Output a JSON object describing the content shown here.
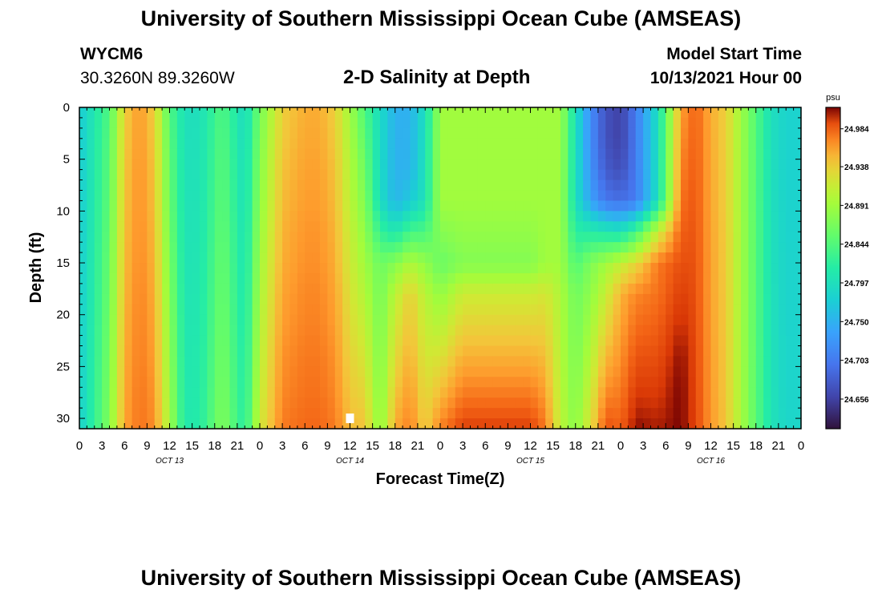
{
  "header": {
    "title": "University of Southern Mississippi Ocean Cube (AMSEAS)",
    "station": "WYCM6",
    "coords": "30.3260N  89.3260W",
    "chart_title": "2-D Salinity at Depth",
    "start_label": "Model Start Time",
    "start_value": "10/13/2021 Hour 00"
  },
  "footer": {
    "title": "University of Southern Mississippi Ocean Cube (AMSEAS)"
  },
  "chart_data": {
    "type": "heatmap",
    "title": "2-D Salinity at Depth",
    "xlabel": "Forecast Time(Z)",
    "ylabel": "Depth (ft)",
    "x_range_hours": [
      0,
      96
    ],
    "y_range": [
      0,
      31
    ],
    "x_tick_labels": [
      "0",
      "3",
      "6",
      "9",
      "12",
      "15",
      "18",
      "21",
      "0",
      "3",
      "6",
      "9",
      "12",
      "15",
      "18",
      "21",
      "0",
      "3",
      "6",
      "9",
      "12",
      "15",
      "18",
      "21",
      "0",
      "3",
      "6",
      "9",
      "12",
      "15",
      "18",
      "21",
      "0"
    ],
    "y_ticks": [
      0,
      5,
      10,
      15,
      20,
      25,
      30
    ],
    "day_labels": [
      "OCT 13",
      "OCT 14",
      "OCT 15",
      "OCT 16"
    ],
    "colorbar": {
      "unit": "psu",
      "range": [
        24.62,
        25.01
      ],
      "tick_values": [
        24.656,
        24.703,
        24.75,
        24.797,
        24.844,
        24.891,
        24.938,
        24.984
      ],
      "tick_labels": [
        "24.656",
        "24.703",
        "24.750",
        "24.797",
        "24.844",
        "24.891",
        "24.938",
        "24.984"
      ]
    },
    "grid": false,
    "color_stops": [
      [
        0.0,
        "#30123b"
      ],
      [
        0.1,
        "#4145ab"
      ],
      [
        0.2,
        "#4675ed"
      ],
      [
        0.3,
        "#39a2fc"
      ],
      [
        0.4,
        "#1bcfd4"
      ],
      [
        0.5,
        "#24eca6"
      ],
      [
        0.6,
        "#61fc6c"
      ],
      [
        0.7,
        "#a4fc3b"
      ],
      [
        0.77,
        "#d1e834"
      ],
      [
        0.83,
        "#f3c63a"
      ],
      [
        0.88,
        "#fe9b2d"
      ],
      [
        0.93,
        "#f36315"
      ],
      [
        0.97,
        "#d93806"
      ],
      [
        1.0,
        "#7a0403"
      ]
    ],
    "grid_hours": [
      0,
      4,
      6,
      8,
      10,
      12,
      14,
      16,
      19,
      22,
      24,
      27,
      30,
      32,
      34,
      36,
      38,
      40,
      42,
      44,
      46,
      48,
      51,
      54,
      56,
      58,
      60,
      62,
      64,
      66,
      68,
      70,
      72,
      74,
      77,
      80,
      82,
      84,
      86,
      88,
      90,
      92,
      94,
      96
    ],
    "grid_depths_ft": [
      0,
      3,
      6,
      9,
      12,
      15,
      18,
      21,
      24,
      27,
      30,
      31
    ],
    "values_psu": [
      [
        24.772,
        24.773,
        24.773,
        24.774,
        24.774,
        24.775,
        24.775,
        24.776,
        24.776,
        24.777,
        24.777,
        24.778
      ],
      [
        24.844,
        24.847,
        24.85,
        24.853,
        24.856,
        24.859,
        24.861,
        24.864,
        24.867,
        24.87,
        24.873,
        24.874
      ],
      [
        24.938,
        24.94,
        24.942,
        24.944,
        24.946,
        24.948,
        24.95,
        24.953,
        24.955,
        24.957,
        24.959,
        24.959
      ],
      [
        24.964,
        24.965,
        24.967,
        24.968,
        24.969,
        24.97,
        24.972,
        24.973,
        24.974,
        24.976,
        24.977,
        24.977
      ],
      [
        24.938,
        24.941,
        24.944,
        24.946,
        24.949,
        24.952,
        24.955,
        24.958,
        24.961,
        24.964,
        24.967,
        24.968
      ],
      [
        24.844,
        24.849,
        24.854,
        24.859,
        24.864,
        24.869,
        24.874,
        24.879,
        24.883,
        24.888,
        24.893,
        24.895
      ],
      [
        24.797,
        24.798,
        24.799,
        24.801,
        24.802,
        24.803,
        24.804,
        24.806,
        24.807,
        24.808,
        24.809,
        24.81
      ],
      [
        24.797,
        24.799,
        24.8,
        24.802,
        24.803,
        24.805,
        24.807,
        24.808,
        24.81,
        24.811,
        24.813,
        24.814
      ],
      [
        24.844,
        24.847,
        24.85,
        24.853,
        24.856,
        24.859,
        24.861,
        24.864,
        24.867,
        24.87,
        24.873,
        24.874
      ],
      [
        24.79,
        24.792,
        24.795,
        24.797,
        24.8,
        24.802,
        24.805,
        24.807,
        24.81,
        24.812,
        24.815,
        24.816
      ],
      [
        24.865,
        24.87,
        24.875,
        24.881,
        24.886,
        24.891,
        24.896,
        24.901,
        24.906,
        24.911,
        24.917,
        24.918
      ],
      [
        24.938,
        24.941,
        24.945,
        24.948,
        24.952,
        24.955,
        24.959,
        24.962,
        24.966,
        24.969,
        24.973,
        24.974
      ],
      [
        24.955,
        24.957,
        24.96,
        24.962,
        24.965,
        24.967,
        24.97,
        24.972,
        24.975,
        24.977,
        24.98,
        24.981
      ],
      [
        24.955,
        24.957,
        24.96,
        24.962,
        24.965,
        24.967,
        24.97,
        24.972,
        24.975,
        24.977,
        24.98,
        24.981
      ],
      [
        24.938,
        24.941,
        24.945,
        24.948,
        24.952,
        24.955,
        24.959,
        24.962,
        24.966,
        24.969,
        24.973,
        24.974
      ],
      [
        24.891,
        24.896,
        24.902,
        24.907,
        24.913,
        24.918,
        24.924,
        24.929,
        24.935,
        24.94,
        24.946,
        24.948
      ],
      [
        24.84,
        24.85,
        24.86,
        24.871,
        24.881,
        24.891,
        24.901,
        24.911,
        24.921,
        24.931,
        24.942,
        24.945
      ],
      [
        24.791,
        24.791,
        24.792,
        24.795,
        24.826,
        24.86,
        24.864,
        24.867,
        24.87,
        24.873,
        24.876,
        24.877
      ],
      [
        24.75,
        24.75,
        24.751,
        24.753,
        24.806,
        24.875,
        24.907,
        24.919,
        24.93,
        24.941,
        24.952,
        24.956
      ],
      [
        24.75,
        24.751,
        24.752,
        24.772,
        24.836,
        24.899,
        24.938,
        24.946,
        24.954,
        24.962,
        24.971,
        24.973
      ],
      [
        24.797,
        24.798,
        24.8,
        24.801,
        24.839,
        24.882,
        24.905,
        24.913,
        24.92,
        24.928,
        24.935,
        24.938
      ],
      [
        24.891,
        24.891,
        24.891,
        24.891,
        24.875,
        24.858,
        24.883,
        24.903,
        24.924,
        24.944,
        24.965,
        24.972
      ],
      [
        24.891,
        24.891,
        24.891,
        24.891,
        24.883,
        24.874,
        24.917,
        24.935,
        24.953,
        24.971,
        24.989,
        24.995
      ],
      [
        24.891,
        24.891,
        24.891,
        24.891,
        24.883,
        24.874,
        24.917,
        24.935,
        24.953,
        24.971,
        24.989,
        24.995
      ],
      [
        24.891,
        24.891,
        24.891,
        24.891,
        24.883,
        24.874,
        24.917,
        24.935,
        24.953,
        24.971,
        24.989,
        24.995
      ],
      [
        24.891,
        24.891,
        24.891,
        24.891,
        24.883,
        24.874,
        24.917,
        24.935,
        24.953,
        24.971,
        24.989,
        24.995
      ],
      [
        24.891,
        24.891,
        24.891,
        24.891,
        24.883,
        24.874,
        24.917,
        24.935,
        24.953,
        24.971,
        24.989,
        24.995
      ],
      [
        24.891,
        24.891,
        24.891,
        24.891,
        24.891,
        24.891,
        24.923,
        24.935,
        24.947,
        24.959,
        24.971,
        24.975
      ],
      [
        24.891,
        24.891,
        24.891,
        24.891,
        24.891,
        24.891,
        24.899,
        24.901,
        24.903,
        24.905,
        24.907,
        24.908
      ],
      [
        24.797,
        24.797,
        24.797,
        24.797,
        24.817,
        24.843,
        24.862,
        24.865,
        24.869,
        24.872,
        24.876,
        24.877
      ],
      [
        24.72,
        24.72,
        24.725,
        24.738,
        24.814,
        24.871,
        24.881,
        24.892,
        24.902,
        24.913,
        24.924,
        24.927
      ],
      [
        24.67,
        24.67,
        24.678,
        24.7,
        24.807,
        24.891,
        24.914,
        24.931,
        24.949,
        24.966,
        24.984,
        24.989
      ],
      [
        24.656,
        24.656,
        24.666,
        24.693,
        24.801,
        24.911,
        24.952,
        24.959,
        24.966,
        24.973,
        24.981,
        24.983
      ],
      [
        24.703,
        24.703,
        24.703,
        24.703,
        24.834,
        24.932,
        24.97,
        24.979,
        24.988,
        24.996,
        25.005,
        25.008
      ],
      [
        24.797,
        24.797,
        24.797,
        24.797,
        24.915,
        24.975,
        24.978,
        24.984,
        24.99,
        24.996,
        25.002,
        25.004
      ],
      [
        24.96,
        24.966,
        24.972,
        24.978,
        24.984,
        24.99,
        24.996,
        25.002,
        25.008,
        25.01,
        25.01,
        25.01
      ],
      [
        24.984,
        24.985,
        24.986,
        24.987,
        24.988,
        24.989,
        24.99,
        24.991,
        24.992,
        24.993,
        24.994,
        24.994
      ],
      [
        24.955,
        24.956,
        24.957,
        24.958,
        24.959,
        24.96,
        24.96,
        24.961,
        24.962,
        24.963,
        24.964,
        24.964
      ],
      [
        24.938,
        24.938,
        24.939,
        24.939,
        24.94,
        24.94,
        24.941,
        24.941,
        24.942,
        24.942,
        24.943,
        24.943
      ],
      [
        24.891,
        24.891,
        24.892,
        24.892,
        24.893,
        24.893,
        24.894,
        24.894,
        24.895,
        24.895,
        24.896,
        24.896
      ],
      [
        24.844,
        24.844,
        24.845,
        24.845,
        24.846,
        24.846,
        24.847,
        24.847,
        24.848,
        24.848,
        24.849,
        24.849
      ],
      [
        24.797,
        24.797,
        24.798,
        24.798,
        24.799,
        24.799,
        24.8,
        24.8,
        24.801,
        24.801,
        24.802,
        24.802
      ],
      [
        24.781,
        24.781,
        24.781,
        24.782,
        24.782,
        24.783,
        24.783,
        24.783,
        24.784,
        24.784,
        24.785,
        24.785
      ],
      [
        24.781,
        24.781,
        24.781,
        24.782,
        24.782,
        24.783,
        24.783,
        24.783,
        24.784,
        24.784,
        24.785,
        24.785
      ]
    ],
    "marker": {
      "hour": 36,
      "depth_ft": 30
    }
  }
}
